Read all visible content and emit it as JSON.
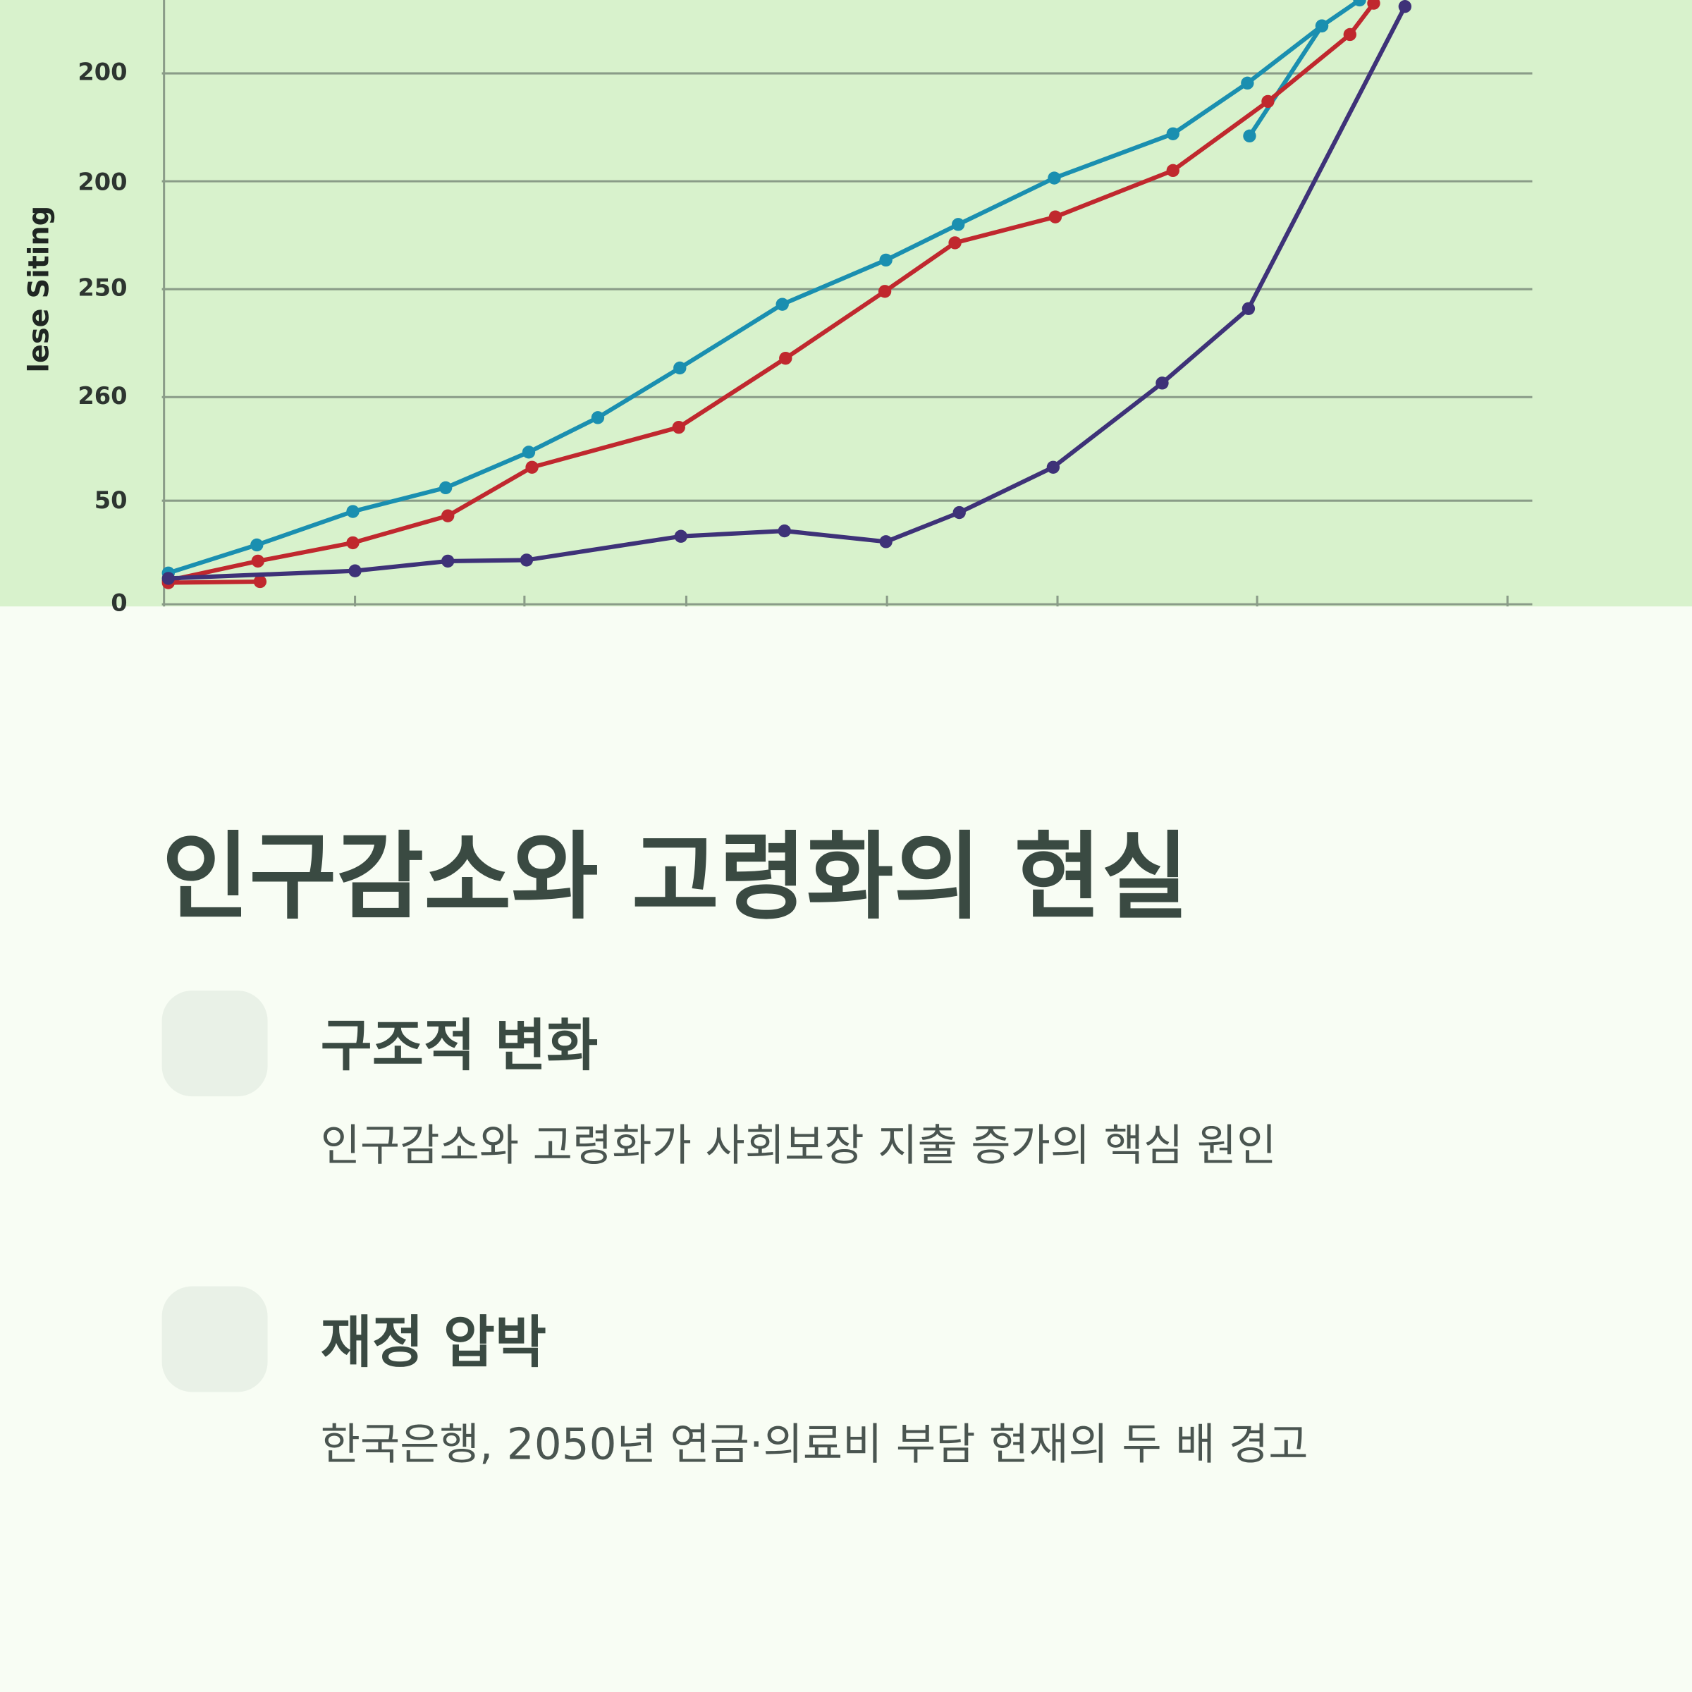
{
  "illustration": {
    "axis_label": "lese Siting",
    "tick_labels": [
      "200",
      "200",
      "250",
      "260",
      "50",
      "0"
    ]
  },
  "title": "인구감소와 고령화의 현실",
  "items": [
    {
      "heading": "구조적 변화",
      "text": "인구감소와 고령화가 사회보장 지출 증가의 핵심 원인"
    },
    {
      "heading": "재정 압박",
      "text": "한국은행, 2050년 연금·의료비 부담 현재의 두 배 경고"
    }
  ]
}
